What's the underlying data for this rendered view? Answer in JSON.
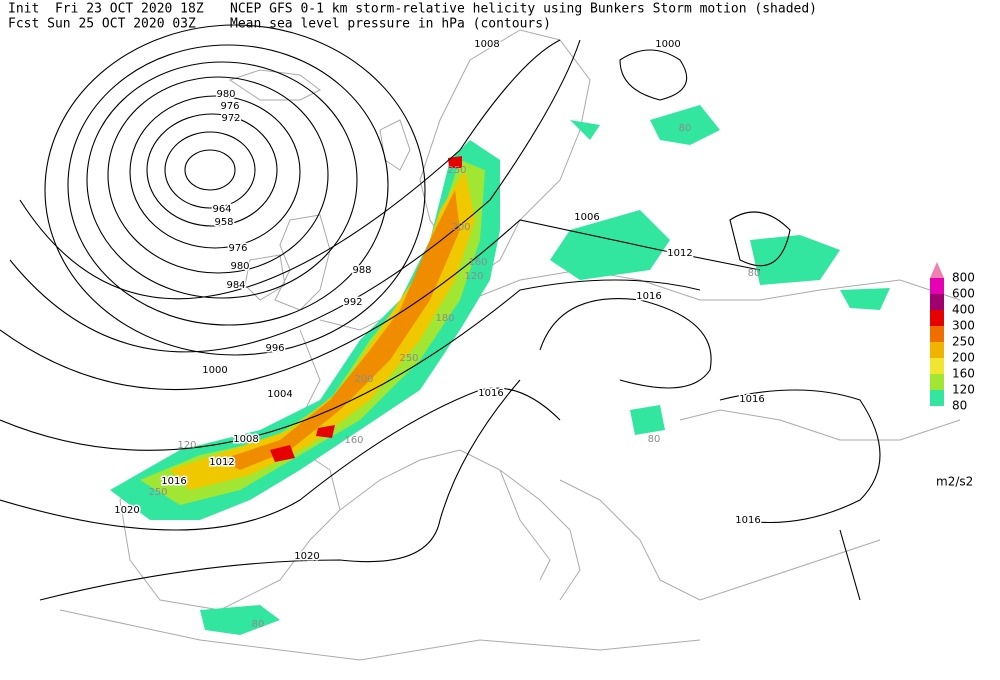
{
  "header": {
    "init": "Init  Fri 23 OCT 2020 18Z",
    "forecast": "Fcst Sun 25 OCT 2020 03Z",
    "shaded_field": "NCEP GFS 0-1 km storm-relative helicity using Bunkers Storm motion (shaded)",
    "contour_field": "Mean sea level pressure in hPa (contours)"
  },
  "contour_labels": [
    1008,
    1000,
    980,
    976,
    972,
    964,
    958,
    976,
    980,
    984,
    988,
    992,
    996,
    1000,
    1004,
    1008,
    1012,
    1016,
    1020,
    1020,
    1006,
    1012,
    1016,
    1016,
    1016,
    1016
  ],
  "shading_labels": [
    250,
    200,
    160,
    120,
    180,
    250,
    200,
    160,
    120,
    250,
    80,
    80,
    80,
    80
  ],
  "legend": {
    "levels": [
      800,
      600,
      400,
      300,
      250,
      200,
      160,
      120,
      80
    ],
    "colors": [
      "#f080b0",
      "#e600b4",
      "#a0006e",
      "#e60000",
      "#f06e00",
      "#f0b400",
      "#f0e632",
      "#a0e632",
      "#33e6a0"
    ],
    "unit": "m2/s2"
  }
}
